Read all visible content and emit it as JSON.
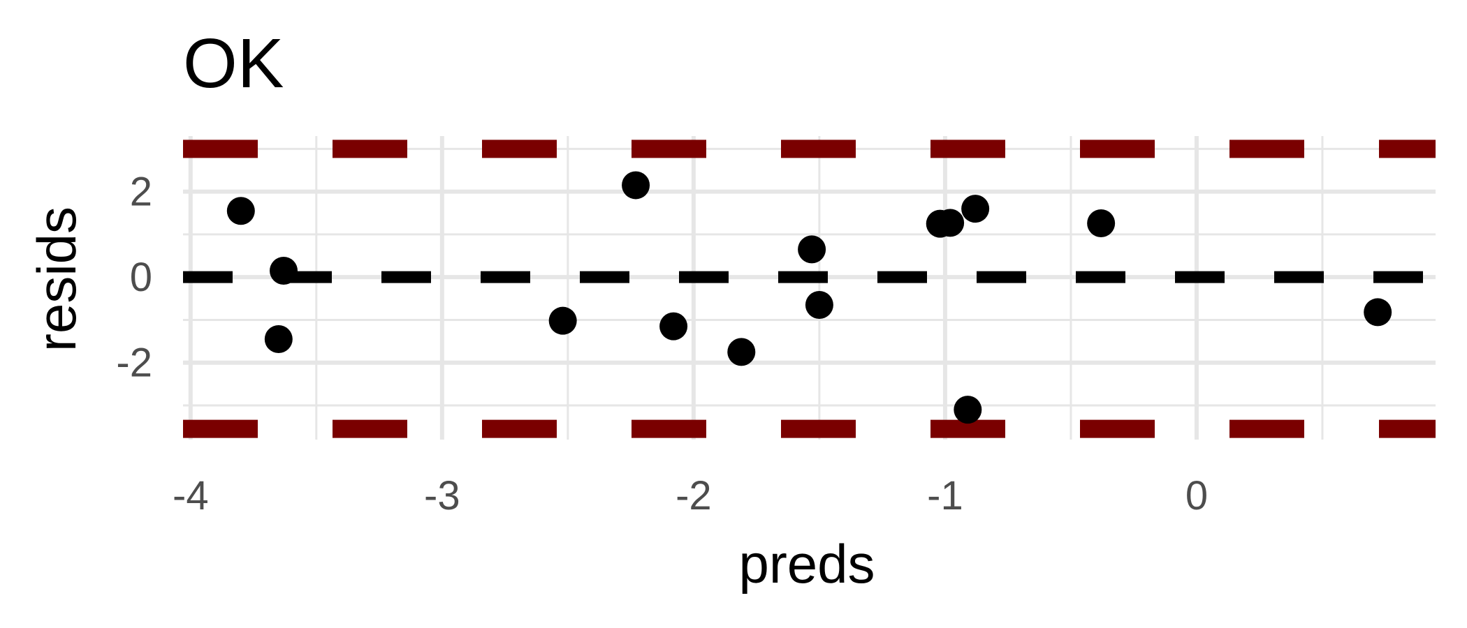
{
  "chart_data": {
    "type": "scatter",
    "title": "OK",
    "xlabel": "preds",
    "ylabel": "resids",
    "xlim": [
      -4.03,
      0.95
    ],
    "ylim": [
      -3.8,
      3.3
    ],
    "x_ticks": [
      -4,
      -3,
      -2,
      -1,
      0
    ],
    "x_tick_labels": [
      "-4",
      "-3",
      "-2",
      "-1",
      "0"
    ],
    "y_ticks": [
      -2,
      0,
      2
    ],
    "y_tick_labels": [
      "-2",
      "0",
      "2"
    ],
    "x_minor_ticks": [
      -3.5,
      -2.5,
      -1.5,
      -0.5,
      0.5
    ],
    "y_minor_ticks": [
      -3,
      -1,
      1,
      3
    ],
    "grid": true,
    "reference_lines": [
      {
        "y": 0,
        "color": "#000000",
        "style": "dashed"
      },
      {
        "y": 3.0,
        "color": "#7a0000",
        "style": "dashed"
      },
      {
        "y": -3.55,
        "color": "#7a0000",
        "style": "dashed"
      }
    ],
    "points": [
      {
        "x": -3.8,
        "y": 1.55
      },
      {
        "x": -3.63,
        "y": 0.15
      },
      {
        "x": -3.65,
        "y": -1.45
      },
      {
        "x": -2.52,
        "y": -1.02
      },
      {
        "x": -2.23,
        "y": 2.15
      },
      {
        "x": -2.08,
        "y": -1.15
      },
      {
        "x": -1.81,
        "y": -1.75
      },
      {
        "x": -1.53,
        "y": 0.65
      },
      {
        "x": -1.5,
        "y": -0.65
      },
      {
        "x": -1.02,
        "y": 1.25
      },
      {
        "x": -0.98,
        "y": 1.27
      },
      {
        "x": -0.88,
        "y": 1.6
      },
      {
        "x": -0.91,
        "y": -3.1
      },
      {
        "x": -0.38,
        "y": 1.26
      },
      {
        "x": 0.72,
        "y": -0.82
      }
    ]
  }
}
